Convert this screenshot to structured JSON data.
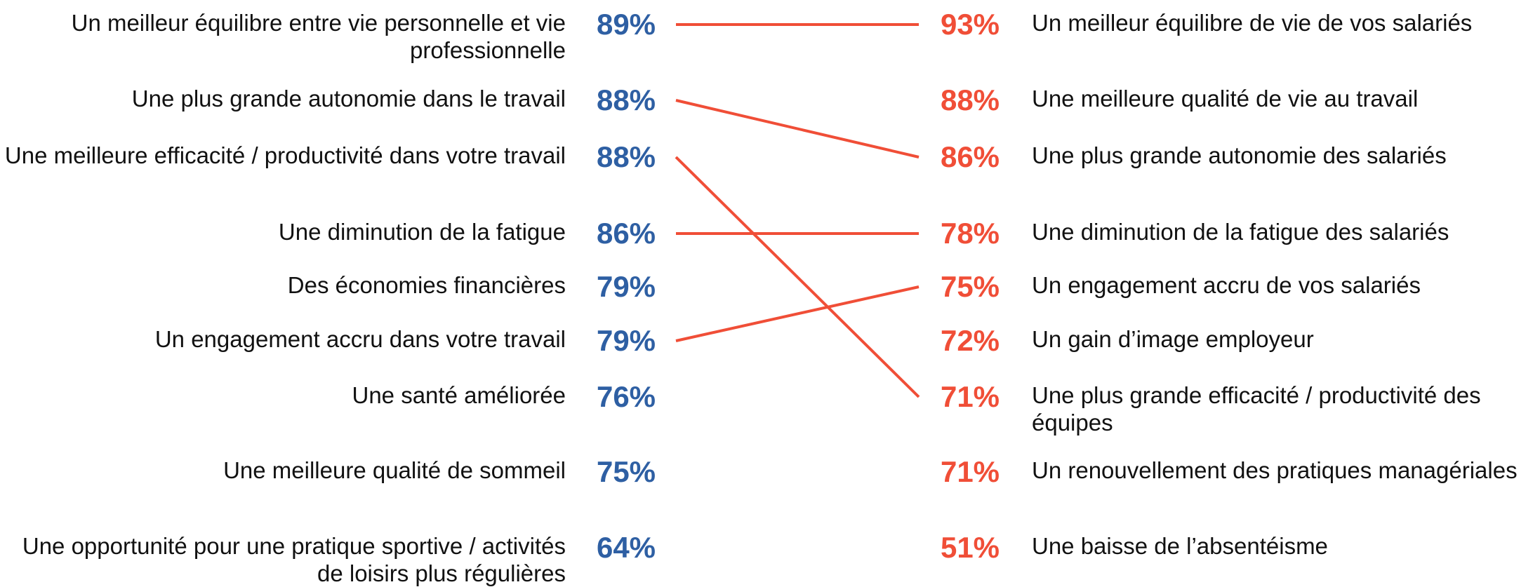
{
  "left": {
    "items": [
      {
        "label": "Un meilleur équilibre entre vie personnelle et vie professionnelle",
        "value": "89%"
      },
      {
        "label": "Une plus grande autonomie dans le travail",
        "value": "88%"
      },
      {
        "label": "Une meilleure efficacité / productivité dans votre travail",
        "value": "88%"
      },
      {
        "label": "Une diminution de la fatigue",
        "value": "86%"
      },
      {
        "label": "Des économies financières",
        "value": "79%"
      },
      {
        "label": "Un engagement accru dans votre travail",
        "value": "79%"
      },
      {
        "label": "Une santé améliorée",
        "value": "76%"
      },
      {
        "label": "Une meilleure qualité de sommeil",
        "value": "75%"
      },
      {
        "label": "Une opportunité pour une pratique sportive / activités de loisirs plus régulières",
        "value": "64%"
      }
    ]
  },
  "right": {
    "items": [
      {
        "label": "Un meilleur équilibre de vie de vos salariés",
        "value": "93%"
      },
      {
        "label": "Une meilleure qualité de vie au travail",
        "value": "88%"
      },
      {
        "label": "Une plus grande autonomie des salariés",
        "value": "86%"
      },
      {
        "label": "Une diminution de la fatigue des salariés",
        "value": "78%"
      },
      {
        "label": "Un engagement accru de vos salariés",
        "value": "75%"
      },
      {
        "label": "Un gain d’image employeur",
        "value": "72%"
      },
      {
        "label": "Une plus grande efficacité / productivité des équipes",
        "value": "71%"
      },
      {
        "label": "Un renouvellement des pratiques managériales",
        "value": "71%"
      },
      {
        "label": "Une baisse de l’absentéisme",
        "value": "51%"
      }
    ]
  }
}
